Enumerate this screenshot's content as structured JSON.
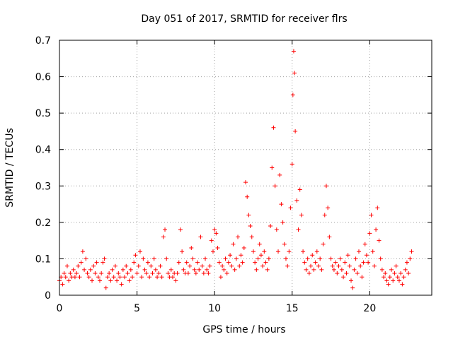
{
  "chart_data": {
    "type": "scatter",
    "title": "Day 051 of 2017, SRMTID for receiver flrs",
    "xlabel": "GPS time / hours",
    "ylabel": "SRMTID / TECUs",
    "xlim": [
      0,
      24
    ],
    "ylim": [
      0,
      0.7
    ],
    "xticks": [
      0,
      5,
      10,
      15,
      20
    ],
    "yticks": [
      0,
      0.1,
      0.2,
      0.3,
      0.4,
      0.5,
      0.6,
      0.7
    ],
    "xtick_labels": [
      "0",
      "5",
      "10",
      "15",
      "20"
    ],
    "ytick_labels": [
      "0",
      "0.1",
      "0.2",
      "0.3",
      "0.4",
      "0.5",
      "0.6",
      "0.7"
    ],
    "grid": true,
    "marker": "+",
    "color": "#ff0000",
    "series": [
      {
        "name": "SRMTID",
        "points": [
          [
            0.0,
            0.04
          ],
          [
            0.1,
            0.05
          ],
          [
            0.2,
            0.03
          ],
          [
            0.3,
            0.06
          ],
          [
            0.4,
            0.05
          ],
          [
            0.5,
            0.08
          ],
          [
            0.6,
            0.04
          ],
          [
            0.7,
            0.06
          ],
          [
            0.8,
            0.05
          ],
          [
            0.9,
            0.07
          ],
          [
            1.0,
            0.05
          ],
          [
            1.1,
            0.06
          ],
          [
            1.2,
            0.08
          ],
          [
            1.3,
            0.05
          ],
          [
            1.4,
            0.09
          ],
          [
            1.5,
            0.12
          ],
          [
            1.6,
            0.07
          ],
          [
            1.7,
            0.1
          ],
          [
            1.8,
            0.06
          ],
          [
            1.9,
            0.05
          ],
          [
            2.0,
            0.07
          ],
          [
            2.1,
            0.04
          ],
          [
            2.2,
            0.08
          ],
          [
            2.3,
            0.06
          ],
          [
            2.4,
            0.09
          ],
          [
            2.5,
            0.05
          ],
          [
            2.6,
            0.04
          ],
          [
            2.7,
            0.06
          ],
          [
            2.8,
            0.09
          ],
          [
            2.9,
            0.1
          ],
          [
            3.0,
            0.02
          ],
          [
            3.1,
            0.05
          ],
          [
            3.2,
            0.06
          ],
          [
            3.3,
            0.04
          ],
          [
            3.4,
            0.07
          ],
          [
            3.5,
            0.05
          ],
          [
            3.6,
            0.08
          ],
          [
            3.7,
            0.04
          ],
          [
            3.8,
            0.06
          ],
          [
            3.9,
            0.05
          ],
          [
            4.0,
            0.03
          ],
          [
            4.1,
            0.07
          ],
          [
            4.2,
            0.05
          ],
          [
            4.3,
            0.08
          ],
          [
            4.4,
            0.06
          ],
          [
            4.5,
            0.04
          ],
          [
            4.6,
            0.07
          ],
          [
            4.7,
            0.05
          ],
          [
            4.8,
            0.09
          ],
          [
            4.9,
            0.11
          ],
          [
            5.0,
            0.06
          ],
          [
            5.1,
            0.08
          ],
          [
            5.2,
            0.12
          ],
          [
            5.3,
            0.05
          ],
          [
            5.4,
            0.1
          ],
          [
            5.5,
            0.07
          ],
          [
            5.6,
            0.06
          ],
          [
            5.7,
            0.09
          ],
          [
            5.8,
            0.05
          ],
          [
            5.9,
            0.08
          ],
          [
            6.0,
            0.06
          ],
          [
            6.1,
            0.1
          ],
          [
            6.2,
            0.07
          ],
          [
            6.3,
            0.05
          ],
          [
            6.4,
            0.06
          ],
          [
            6.5,
            0.08
          ],
          [
            6.6,
            0.05
          ],
          [
            6.7,
            0.16
          ],
          [
            6.8,
            0.18
          ],
          [
            6.9,
            0.1
          ],
          [
            7.0,
            0.06
          ],
          [
            7.1,
            0.05
          ],
          [
            7.2,
            0.07
          ],
          [
            7.3,
            0.05
          ],
          [
            7.4,
            0.06
          ],
          [
            7.5,
            0.04
          ],
          [
            7.6,
            0.06
          ],
          [
            7.7,
            0.09
          ],
          [
            7.8,
            0.18
          ],
          [
            7.9,
            0.12
          ],
          [
            8.0,
            0.07
          ],
          [
            8.1,
            0.06
          ],
          [
            8.2,
            0.09
          ],
          [
            8.3,
            0.06
          ],
          [
            8.4,
            0.08
          ],
          [
            8.5,
            0.13
          ],
          [
            8.6,
            0.1
          ],
          [
            8.7,
            0.07
          ],
          [
            8.8,
            0.06
          ],
          [
            8.9,
            0.09
          ],
          [
            9.0,
            0.07
          ],
          [
            9.1,
            0.16
          ],
          [
            9.2,
            0.08
          ],
          [
            9.3,
            0.06
          ],
          [
            9.4,
            0.1
          ],
          [
            9.5,
            0.07
          ],
          [
            9.6,
            0.06
          ],
          [
            9.7,
            0.08
          ],
          [
            9.8,
            0.15
          ],
          [
            9.9,
            0.12
          ],
          [
            10.0,
            0.18
          ],
          [
            10.1,
            0.17
          ],
          [
            10.2,
            0.13
          ],
          [
            10.3,
            0.09
          ],
          [
            10.4,
            0.05
          ],
          [
            10.5,
            0.08
          ],
          [
            10.6,
            0.07
          ],
          [
            10.7,
            0.1
          ],
          [
            10.8,
            0.06
          ],
          [
            10.9,
            0.09
          ],
          [
            11.0,
            0.11
          ],
          [
            11.1,
            0.08
          ],
          [
            11.2,
            0.14
          ],
          [
            11.3,
            0.07
          ],
          [
            11.4,
            0.1
          ],
          [
            11.5,
            0.16
          ],
          [
            11.6,
            0.08
          ],
          [
            11.7,
            0.11
          ],
          [
            11.8,
            0.09
          ],
          [
            11.9,
            0.13
          ],
          [
            12.0,
            0.31
          ],
          [
            12.1,
            0.27
          ],
          [
            12.2,
            0.22
          ],
          [
            12.3,
            0.19
          ],
          [
            12.4,
            0.16
          ],
          [
            12.5,
            0.12
          ],
          [
            12.6,
            0.09
          ],
          [
            12.7,
            0.07
          ],
          [
            12.8,
            0.1
          ],
          [
            12.9,
            0.14
          ],
          [
            13.0,
            0.11
          ],
          [
            13.1,
            0.08
          ],
          [
            13.2,
            0.12
          ],
          [
            13.3,
            0.09
          ],
          [
            13.4,
            0.07
          ],
          [
            13.5,
            0.1
          ],
          [
            13.6,
            0.19
          ],
          [
            13.7,
            0.35
          ],
          [
            13.8,
            0.46
          ],
          [
            13.9,
            0.3
          ],
          [
            14.0,
            0.18
          ],
          [
            14.1,
            0.12
          ],
          [
            14.2,
            0.33
          ],
          [
            14.3,
            0.25
          ],
          [
            14.4,
            0.2
          ],
          [
            14.5,
            0.14
          ],
          [
            14.6,
            0.1
          ],
          [
            14.7,
            0.08
          ],
          [
            14.8,
            0.12
          ],
          [
            14.9,
            0.24
          ],
          [
            15.0,
            0.36
          ],
          [
            15.05,
            0.55
          ],
          [
            15.1,
            0.67
          ],
          [
            15.15,
            0.61
          ],
          [
            15.2,
            0.45
          ],
          [
            15.3,
            0.26
          ],
          [
            15.4,
            0.18
          ],
          [
            15.5,
            0.29
          ],
          [
            15.6,
            0.22
          ],
          [
            15.7,
            0.12
          ],
          [
            15.8,
            0.09
          ],
          [
            15.9,
            0.07
          ],
          [
            16.0,
            0.1
          ],
          [
            16.1,
            0.06
          ],
          [
            16.2,
            0.08
          ],
          [
            16.3,
            0.11
          ],
          [
            16.4,
            0.07
          ],
          [
            16.5,
            0.09
          ],
          [
            16.6,
            0.12
          ],
          [
            16.7,
            0.08
          ],
          [
            16.8,
            0.1
          ],
          [
            16.9,
            0.07
          ],
          [
            17.0,
            0.14
          ],
          [
            17.1,
            0.22
          ],
          [
            17.2,
            0.3
          ],
          [
            17.3,
            0.24
          ],
          [
            17.4,
            0.16
          ],
          [
            17.5,
            0.1
          ],
          [
            17.6,
            0.08
          ],
          [
            17.7,
            0.07
          ],
          [
            17.8,
            0.09
          ],
          [
            17.9,
            0.06
          ],
          [
            18.0,
            0.08
          ],
          [
            18.1,
            0.1
          ],
          [
            18.2,
            0.07
          ],
          [
            18.3,
            0.05
          ],
          [
            18.4,
            0.09
          ],
          [
            18.5,
            0.06
          ],
          [
            18.6,
            0.11
          ],
          [
            18.7,
            0.08
          ],
          [
            18.8,
            0.04
          ],
          [
            18.9,
            0.02
          ],
          [
            19.0,
            0.07
          ],
          [
            19.1,
            0.1
          ],
          [
            19.2,
            0.06
          ],
          [
            19.3,
            0.12
          ],
          [
            19.4,
            0.08
          ],
          [
            19.5,
            0.05
          ],
          [
            19.6,
            0.09
          ],
          [
            19.7,
            0.14
          ],
          [
            19.8,
            0.11
          ],
          [
            19.9,
            0.09
          ],
          [
            20.0,
            0.17
          ],
          [
            20.1,
            0.22
          ],
          [
            20.2,
            0.12
          ],
          [
            20.3,
            0.08
          ],
          [
            20.4,
            0.18
          ],
          [
            20.5,
            0.24
          ],
          [
            20.6,
            0.15
          ],
          [
            20.7,
            0.1
          ],
          [
            20.8,
            0.07
          ],
          [
            20.9,
            0.05
          ],
          [
            21.0,
            0.06
          ],
          [
            21.1,
            0.04
          ],
          [
            21.2,
            0.03
          ],
          [
            21.3,
            0.05
          ],
          [
            21.4,
            0.07
          ],
          [
            21.5,
            0.04
          ],
          [
            21.6,
            0.06
          ],
          [
            21.7,
            0.08
          ],
          [
            21.8,
            0.05
          ],
          [
            21.9,
            0.04
          ],
          [
            22.0,
            0.06
          ],
          [
            22.1,
            0.03
          ],
          [
            22.2,
            0.05
          ],
          [
            22.3,
            0.07
          ],
          [
            22.4,
            0.09
          ],
          [
            22.5,
            0.06
          ],
          [
            22.6,
            0.1
          ],
          [
            22.7,
            0.12
          ]
        ]
      }
    ]
  }
}
